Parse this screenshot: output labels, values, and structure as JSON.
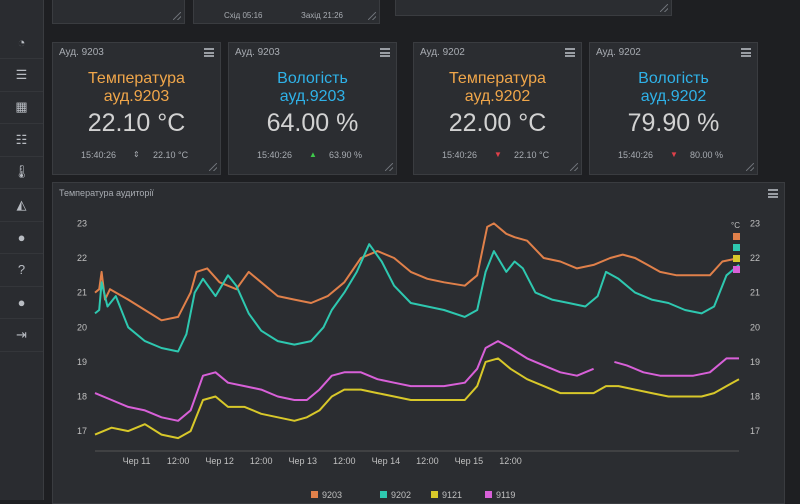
{
  "top_panel": {
    "sunrise_label": "Схід 05:16",
    "sunset_label": "Захід 21:26"
  },
  "sidebar": {
    "items": [
      {
        "name": "dashboard-icon",
        "glyph": "◔"
      },
      {
        "name": "rss-icon",
        "glyph": "☰"
      },
      {
        "name": "calculator-icon",
        "glyph": "▦"
      },
      {
        "name": "database-icon",
        "glyph": "☷"
      },
      {
        "name": "thermometer-icon",
        "glyph": "🌡"
      },
      {
        "name": "chart-add-icon",
        "glyph": "◭"
      },
      {
        "name": "chat-icon",
        "glyph": "●"
      },
      {
        "name": "help-icon",
        "glyph": "?"
      },
      {
        "name": "user-icon",
        "glyph": "●"
      },
      {
        "name": "logout-icon",
        "glyph": "⇥"
      }
    ]
  },
  "cards": [
    {
      "header": "Ауд. 9203",
      "title_line1": "Температура",
      "title_line2": "ауд.9203",
      "value": "22.10 °C",
      "time": "15:40:26",
      "trend_value": "22.10 °C",
      "trend": "flat",
      "color": "orange"
    },
    {
      "header": "Ауд. 9203",
      "title_line1": "Вологість",
      "title_line2": "ауд.9203",
      "value": "64.00 %",
      "time": "15:40:26",
      "trend_value": "63.90 %",
      "trend": "up",
      "color": "blue"
    },
    {
      "header": "Ауд. 9202",
      "title_line1": "Температура",
      "title_line2": "ауд.9202",
      "value": "22.00 °C",
      "time": "15:40:26",
      "trend_value": "22.10 °C",
      "trend": "down",
      "color": "orange"
    },
    {
      "header": "Ауд. 9202",
      "title_line1": "Вологість",
      "title_line2": "ауд.9202",
      "value": "79.90 %",
      "time": "15:40:26",
      "trend_value": "80.00 %",
      "trend": "down",
      "color": "blue"
    }
  ],
  "colors": {
    "up": "#3ec94a",
    "down": "#e0404a",
    "flat": "#a8acb2"
  },
  "chart": {
    "title": "Температура аудиторії",
    "unit": "°C",
    "y_ticks": [
      "23",
      "22",
      "21",
      "20",
      "19",
      "18",
      "17"
    ],
    "x_ticks": [
      "Чер 11",
      "12:00",
      "Чер 12",
      "12:00",
      "Чер 13",
      "12:00",
      "Чер 14",
      "12:00",
      "Чер 15",
      "12:00"
    ],
    "legend": [
      {
        "name": "9203",
        "color": "#e0804a"
      },
      {
        "name": "9202",
        "color": "#2ec8b0"
      },
      {
        "name": "9121",
        "color": "#d8c82a"
      },
      {
        "name": "9119",
        "color": "#d860d8"
      }
    ]
  },
  "chart_data": {
    "type": "line",
    "x_unit": "days",
    "ylim": [
      16.6,
      23.3
    ],
    "series": [
      {
        "name": "9203",
        "color": "#e0804a",
        "points": [
          [
            0,
            21.0
          ],
          [
            0.05,
            21.1
          ],
          [
            0.08,
            21.6
          ],
          [
            0.12,
            20.8
          ],
          [
            0.18,
            21.1
          ],
          [
            0.4,
            20.8
          ],
          [
            0.6,
            20.5
          ],
          [
            0.8,
            20.2
          ],
          [
            1.0,
            20.3
          ],
          [
            1.15,
            21.0
          ],
          [
            1.22,
            21.6
          ],
          [
            1.35,
            21.7
          ],
          [
            1.5,
            21.3
          ],
          [
            1.7,
            21.1
          ],
          [
            1.85,
            21.6
          ],
          [
            2.0,
            21.3
          ],
          [
            2.2,
            20.9
          ],
          [
            2.4,
            20.8
          ],
          [
            2.6,
            20.7
          ],
          [
            2.8,
            20.9
          ],
          [
            3.0,
            21.3
          ],
          [
            3.2,
            22.0
          ],
          [
            3.4,
            22.2
          ],
          [
            3.6,
            22.0
          ],
          [
            3.8,
            21.6
          ],
          [
            4.0,
            21.4
          ],
          [
            4.2,
            21.3
          ],
          [
            4.45,
            21.2
          ],
          [
            4.6,
            21.5
          ],
          [
            4.72,
            22.9
          ],
          [
            4.8,
            23.0
          ],
          [
            4.95,
            22.7
          ],
          [
            5.05,
            22.6
          ],
          [
            5.2,
            22.5
          ],
          [
            5.4,
            22.0
          ],
          [
            5.6,
            21.9
          ],
          [
            5.8,
            21.7
          ],
          [
            6.0,
            21.8
          ],
          [
            6.2,
            22.0
          ],
          [
            6.35,
            22.1
          ],
          [
            6.5,
            22.0
          ],
          [
            6.65,
            21.8
          ],
          [
            6.8,
            21.6
          ],
          [
            7.0,
            21.5
          ],
          [
            7.2,
            21.5
          ],
          [
            7.4,
            21.5
          ],
          [
            7.55,
            21.9
          ],
          [
            7.75,
            22.0
          ]
        ]
      },
      {
        "name": "9202",
        "color": "#2ec8b0",
        "points": [
          [
            0,
            20.4
          ],
          [
            0.05,
            20.5
          ],
          [
            0.08,
            21.3
          ],
          [
            0.15,
            20.6
          ],
          [
            0.25,
            20.9
          ],
          [
            0.4,
            20.0
          ],
          [
            0.6,
            19.6
          ],
          [
            0.8,
            19.4
          ],
          [
            1.0,
            19.3
          ],
          [
            1.1,
            19.8
          ],
          [
            1.2,
            21.0
          ],
          [
            1.3,
            21.4
          ],
          [
            1.45,
            20.9
          ],
          [
            1.6,
            21.5
          ],
          [
            1.7,
            21.2
          ],
          [
            1.85,
            20.4
          ],
          [
            2.0,
            19.9
          ],
          [
            2.2,
            19.6
          ],
          [
            2.4,
            19.5
          ],
          [
            2.6,
            19.6
          ],
          [
            2.75,
            20.0
          ],
          [
            2.85,
            20.5
          ],
          [
            3.0,
            21.0
          ],
          [
            3.15,
            21.6
          ],
          [
            3.3,
            22.4
          ],
          [
            3.45,
            21.9
          ],
          [
            3.6,
            21.2
          ],
          [
            3.8,
            20.7
          ],
          [
            4.0,
            20.6
          ],
          [
            4.2,
            20.5
          ],
          [
            4.45,
            20.3
          ],
          [
            4.6,
            20.5
          ],
          [
            4.7,
            21.6
          ],
          [
            4.8,
            22.2
          ],
          [
            4.95,
            21.6
          ],
          [
            5.05,
            21.9
          ],
          [
            5.15,
            21.7
          ],
          [
            5.3,
            21.0
          ],
          [
            5.5,
            20.8
          ],
          [
            5.7,
            20.7
          ],
          [
            5.9,
            20.6
          ],
          [
            6.05,
            20.9
          ],
          [
            6.15,
            21.6
          ],
          [
            6.3,
            21.4
          ],
          [
            6.5,
            21.0
          ],
          [
            6.7,
            20.8
          ],
          [
            6.9,
            20.7
          ],
          [
            7.1,
            20.5
          ],
          [
            7.3,
            20.4
          ],
          [
            7.45,
            20.6
          ],
          [
            7.6,
            21.5
          ],
          [
            7.75,
            21.8
          ]
        ]
      },
      {
        "name": "9121",
        "color": "#d8c82a",
        "points": [
          [
            0,
            16.9
          ],
          [
            0.2,
            17.1
          ],
          [
            0.4,
            17.0
          ],
          [
            0.6,
            17.2
          ],
          [
            0.8,
            16.9
          ],
          [
            1.0,
            16.8
          ],
          [
            1.15,
            17.0
          ],
          [
            1.3,
            17.9
          ],
          [
            1.45,
            18.0
          ],
          [
            1.6,
            17.7
          ],
          [
            1.8,
            17.7
          ],
          [
            2.0,
            17.5
          ],
          [
            2.2,
            17.4
          ],
          [
            2.4,
            17.3
          ],
          [
            2.55,
            17.4
          ],
          [
            2.7,
            17.6
          ],
          [
            2.85,
            18.0
          ],
          [
            3.0,
            18.2
          ],
          [
            3.2,
            18.2
          ],
          [
            3.4,
            18.1
          ],
          [
            3.6,
            18.0
          ],
          [
            3.8,
            17.9
          ],
          [
            4.0,
            17.9
          ],
          [
            4.2,
            17.9
          ],
          [
            4.45,
            17.9
          ],
          [
            4.6,
            18.3
          ],
          [
            4.7,
            19.0
          ],
          [
            4.85,
            19.1
          ],
          [
            5.0,
            18.8
          ],
          [
            5.2,
            18.5
          ],
          [
            5.4,
            18.3
          ],
          [
            5.6,
            18.1
          ],
          [
            5.8,
            18.1
          ],
          [
            6.0,
            18.1
          ],
          [
            6.15,
            18.3
          ],
          [
            6.3,
            18.3
          ],
          [
            6.5,
            18.2
          ],
          [
            6.7,
            18.1
          ],
          [
            6.9,
            18.0
          ],
          [
            7.1,
            18.0
          ],
          [
            7.3,
            18.0
          ],
          [
            7.45,
            18.1
          ],
          [
            7.6,
            18.3
          ],
          [
            7.75,
            18.5
          ]
        ]
      },
      {
        "name": "9119",
        "color": "#d860d8",
        "points": [
          [
            0,
            18.1
          ],
          [
            0.2,
            17.9
          ],
          [
            0.4,
            17.7
          ],
          [
            0.6,
            17.6
          ],
          [
            0.8,
            17.4
          ],
          [
            1.0,
            17.3
          ],
          [
            1.15,
            17.6
          ],
          [
            1.3,
            18.6
          ],
          [
            1.45,
            18.7
          ],
          [
            1.6,
            18.4
          ],
          [
            1.8,
            18.3
          ],
          [
            2.0,
            18.2
          ],
          [
            2.2,
            18.0
          ],
          [
            2.4,
            17.9
          ],
          [
            2.55,
            17.9
          ],
          [
            2.7,
            18.2
          ],
          [
            2.85,
            18.6
          ],
          [
            3.0,
            18.7
          ],
          [
            3.2,
            18.7
          ],
          [
            3.4,
            18.5
          ],
          [
            3.6,
            18.4
          ],
          [
            3.8,
            18.3
          ],
          [
            4.0,
            18.3
          ],
          [
            4.2,
            18.3
          ],
          [
            4.45,
            18.4
          ],
          [
            4.6,
            18.8
          ],
          [
            4.7,
            19.4
          ],
          [
            4.85,
            19.6
          ],
          [
            5.0,
            19.4
          ],
          [
            5.2,
            19.1
          ],
          [
            5.4,
            18.9
          ],
          [
            5.6,
            18.7
          ],
          [
            5.8,
            18.6
          ],
          [
            6.0,
            18.8
          ],
          [
            6.15,
            null
          ],
          [
            6.25,
            19.0
          ],
          [
            6.4,
            18.9
          ],
          [
            6.6,
            18.7
          ],
          [
            6.8,
            18.6
          ],
          [
            7.0,
            18.6
          ],
          [
            7.2,
            18.6
          ],
          [
            7.4,
            18.7
          ],
          [
            7.6,
            19.1
          ],
          [
            7.75,
            19.1
          ]
        ]
      }
    ]
  }
}
